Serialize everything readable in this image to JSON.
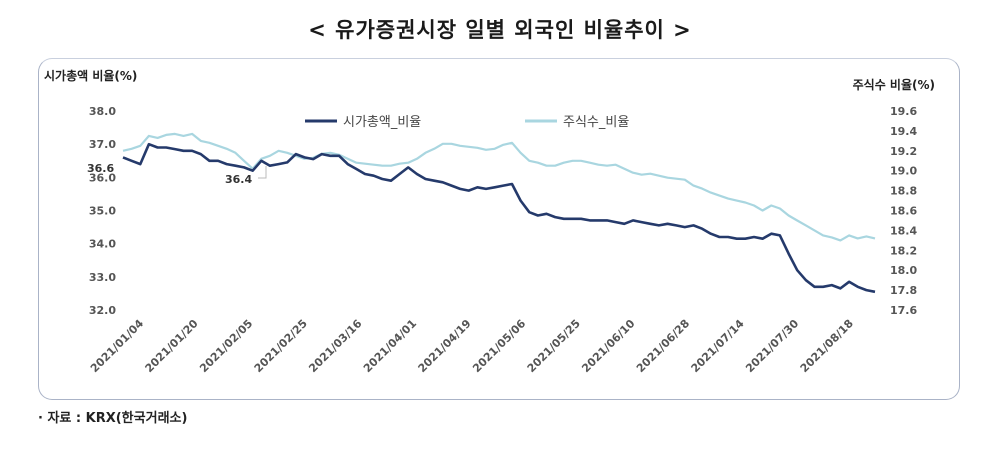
{
  "chart_data": {
    "type": "line",
    "title": "< 유가증권시장 일별 외국인 비율추이 >",
    "source": "· 자료 : KRX(한국거래소)",
    "ylabel_left": "시가총액 비율(%)",
    "ylabel_right": "주식수 비율(%)",
    "ylim_left": [
      32.0,
      38.0
    ],
    "ylim_right": [
      17.6,
      19.6
    ],
    "yticks_left": [
      "38.0",
      "37.0",
      "36.0",
      "35.0",
      "34.0",
      "33.0",
      "32.0"
    ],
    "yticks_right": [
      "19.6",
      "19.4",
      "19.2",
      "19.0",
      "18.8",
      "18.6",
      "18.4",
      "18.2",
      "18.0",
      "17.8",
      "17.6"
    ],
    "xticks": [
      "2021/01/04",
      "2021/01/20",
      "2021/02/05",
      "2021/02/25",
      "2021/03/16",
      "2021/04/01",
      "2021/04/19",
      "2021/05/06",
      "2021/05/25",
      "2021/06/10",
      "2021/06/28",
      "2021/07/14",
      "2021/07/30",
      "2021/08/18"
    ],
    "annotations": [
      "36.6",
      "36.4"
    ],
    "legend_position": "top-center",
    "series": [
      {
        "name": "시가총액_비율",
        "axis": "left",
        "color": "#253a6b",
        "values": [
          36.6,
          36.5,
          36.4,
          37.0,
          36.9,
          36.9,
          36.85,
          36.8,
          36.8,
          36.7,
          36.5,
          36.5,
          36.4,
          36.35,
          36.3,
          36.2,
          36.5,
          36.35,
          36.4,
          36.45,
          36.7,
          36.6,
          36.55,
          36.7,
          36.65,
          36.65,
          36.4,
          36.25,
          36.1,
          36.05,
          35.95,
          35.9,
          36.1,
          36.3,
          36.1,
          35.95,
          35.9,
          35.85,
          35.75,
          35.65,
          35.6,
          35.7,
          35.65,
          35.7,
          35.75,
          35.8,
          35.3,
          34.95,
          34.85,
          34.9,
          34.8,
          34.75,
          34.75,
          34.75,
          34.7,
          34.7,
          34.7,
          34.65,
          34.6,
          34.7,
          34.65,
          34.6,
          34.55,
          34.6,
          34.55,
          34.5,
          34.55,
          34.45,
          34.3,
          34.2,
          34.2,
          34.15,
          34.15,
          34.2,
          34.15,
          34.3,
          34.25,
          33.7,
          33.2,
          32.9,
          32.7,
          32.7,
          32.75,
          32.65,
          32.85,
          32.7,
          32.6,
          32.55
        ]
      },
      {
        "name": "주식수_비율",
        "axis": "right",
        "color": "#a9d6e0",
        "values": [
          19.2,
          19.22,
          19.25,
          19.35,
          19.33,
          19.36,
          19.37,
          19.35,
          19.37,
          19.3,
          19.28,
          19.25,
          19.22,
          19.18,
          19.1,
          19.02,
          19.12,
          19.15,
          19.2,
          19.18,
          19.15,
          19.12,
          19.13,
          19.17,
          19.18,
          19.16,
          19.12,
          19.08,
          19.07,
          19.06,
          19.05,
          19.05,
          19.07,
          19.08,
          19.12,
          19.18,
          19.22,
          19.27,
          19.27,
          19.25,
          19.24,
          19.23,
          19.21,
          19.22,
          19.26,
          19.28,
          19.18,
          19.1,
          19.08,
          19.05,
          19.05,
          19.08,
          19.1,
          19.1,
          19.08,
          19.06,
          19.05,
          19.06,
          19.02,
          18.98,
          18.96,
          18.97,
          18.95,
          18.93,
          18.92,
          18.91,
          18.85,
          18.82,
          18.78,
          18.75,
          18.72,
          18.7,
          18.68,
          18.65,
          18.6,
          18.65,
          18.62,
          18.55,
          18.5,
          18.45,
          18.4,
          18.35,
          18.33,
          18.3,
          18.35,
          18.32,
          18.34,
          18.32
        ]
      }
    ]
  }
}
